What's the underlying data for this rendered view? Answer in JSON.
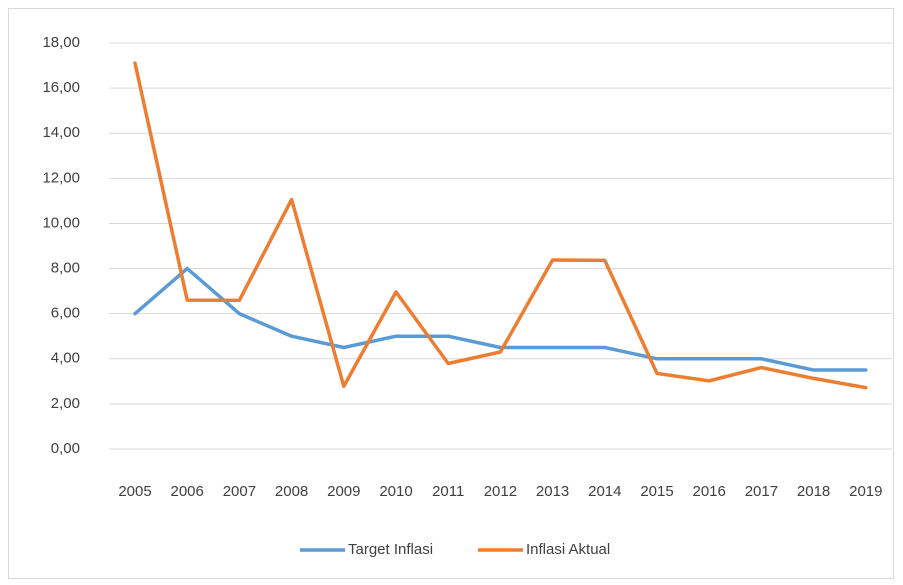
{
  "chart_data": {
    "type": "line",
    "categories": [
      "2005",
      "2006",
      "2007",
      "2008",
      "2009",
      "2010",
      "2011",
      "2012",
      "2013",
      "2014",
      "2015",
      "2016",
      "2017",
      "2018",
      "2019"
    ],
    "series": [
      {
        "name": "Target Inflasi",
        "color": "#5b9bd5",
        "values": [
          6,
          8,
          6,
          5,
          4.5,
          5,
          5,
          4.5,
          4.5,
          4.5,
          4,
          4,
          4,
          3.5,
          3.5
        ]
      },
      {
        "name": "Inflasi Aktual",
        "color": "#ed7d31",
        "values": [
          17.11,
          6.6,
          6.59,
          11.06,
          2.78,
          6.96,
          3.79,
          4.3,
          8.38,
          8.36,
          3.35,
          3.02,
          3.61,
          3.13,
          2.72
        ]
      }
    ],
    "ylim": [
      0,
      18
    ],
    "yticks": [
      {
        "value": 0,
        "label": "0,00"
      },
      {
        "value": 2,
        "label": "2,00"
      },
      {
        "value": 4,
        "label": "4,00"
      },
      {
        "value": 6,
        "label": "6,00"
      },
      {
        "value": 8,
        "label": "8,00"
      },
      {
        "value": 10,
        "label": "10,00"
      },
      {
        "value": 12,
        "label": "12,00"
      },
      {
        "value": 14,
        "label": "14,00"
      },
      {
        "value": 16,
        "label": "16,00"
      },
      {
        "value": 18,
        "label": "18,00"
      }
    ],
    "grid": true,
    "legend": "bottom"
  }
}
